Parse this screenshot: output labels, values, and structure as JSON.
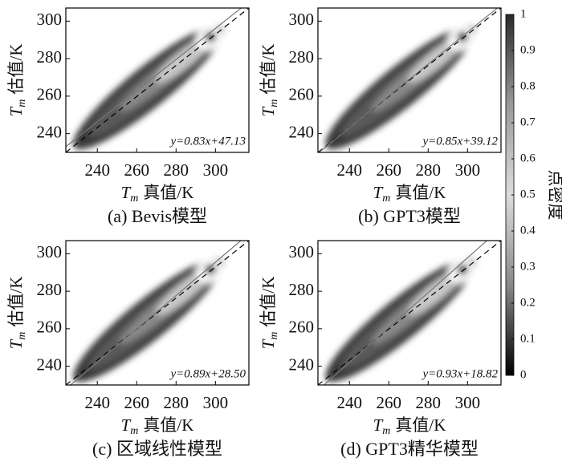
{
  "chart_data": [
    {
      "type": "scatter",
      "caption": "(a) Bevis模型",
      "xlabel": [
        "T",
        "m",
        "真值/K"
      ],
      "ylabel": [
        "T",
        "m",
        "估值/K"
      ],
      "fit": {
        "slope": 0.83,
        "intercept": 47.13
      },
      "fit_label": "y=0.83x+47.13",
      "xlim": [
        224,
        317
      ],
      "ylim": [
        230,
        307
      ],
      "xticks": [
        240,
        260,
        280,
        300
      ],
      "yticks": [
        240,
        260,
        280,
        300
      ]
    },
    {
      "type": "scatter",
      "caption": "(b) GPT3模型",
      "xlabel": [
        "T",
        "m",
        "真值/K"
      ],
      "ylabel": [
        "T",
        "m",
        "估值/K"
      ],
      "fit": {
        "slope": 0.85,
        "intercept": 39.12
      },
      "fit_label": "y=0.85x+39.12",
      "xlim": [
        224,
        317
      ],
      "ylim": [
        230,
        307
      ],
      "xticks": [
        240,
        260,
        280,
        300
      ],
      "yticks": [
        240,
        260,
        280,
        300
      ]
    },
    {
      "type": "scatter",
      "caption": "(c) 区域线性模型",
      "xlabel": [
        "T",
        "m",
        "真值/K"
      ],
      "ylabel": [
        "T",
        "m",
        "估值/K"
      ],
      "fit": {
        "slope": 0.89,
        "intercept": 28.5
      },
      "fit_label": "y=0.89x+28.50",
      "xlim": [
        224,
        317
      ],
      "ylim": [
        230,
        307
      ],
      "xticks": [
        240,
        260,
        280,
        300
      ],
      "yticks": [
        240,
        260,
        280,
        300
      ]
    },
    {
      "type": "scatter",
      "caption": "(d) GPT3精华模型",
      "xlabel": [
        "T",
        "m",
        "真值/K"
      ],
      "ylabel": [
        "T",
        "m",
        "估值/K"
      ],
      "fit": {
        "slope": 0.93,
        "intercept": 18.82
      },
      "fit_label": "y=0.93x+18.82",
      "xlim": [
        224,
        317
      ],
      "ylim": [
        230,
        307
      ],
      "xticks": [
        240,
        260,
        280,
        300
      ],
      "yticks": [
        240,
        260,
        280,
        300
      ]
    }
  ],
  "colorbar": {
    "label": "点密度",
    "lim": [
      0,
      1
    ],
    "ticks": [
      0,
      0.1,
      0.2,
      0.3,
      0.4,
      0.5,
      0.6,
      0.7,
      0.8,
      0.9,
      1
    ]
  }
}
